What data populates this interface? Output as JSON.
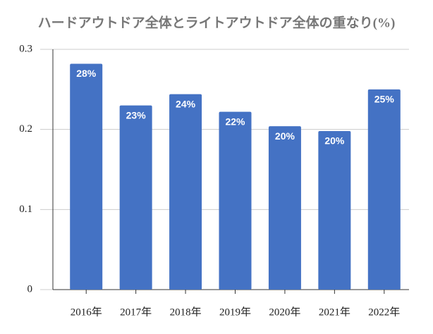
{
  "chart_data": {
    "type": "bar",
    "title": "ハードアウトドア全体とライトアウトドア全体の重なり(%)",
    "categories": [
      "2016年",
      "2017年",
      "2018年",
      "2019年",
      "2020年",
      "2021年",
      "2022年"
    ],
    "values": [
      0.282,
      0.23,
      0.244,
      0.222,
      0.204,
      0.198,
      0.25
    ],
    "value_labels": [
      "28%",
      "23%",
      "24%",
      "22%",
      "20%",
      "20%",
      "25%"
    ],
    "color": "#4472c4",
    "ylim": [
      0,
      0.3
    ],
    "yticks": [
      0,
      0.1,
      0.2,
      0.3
    ],
    "grid": true
  }
}
